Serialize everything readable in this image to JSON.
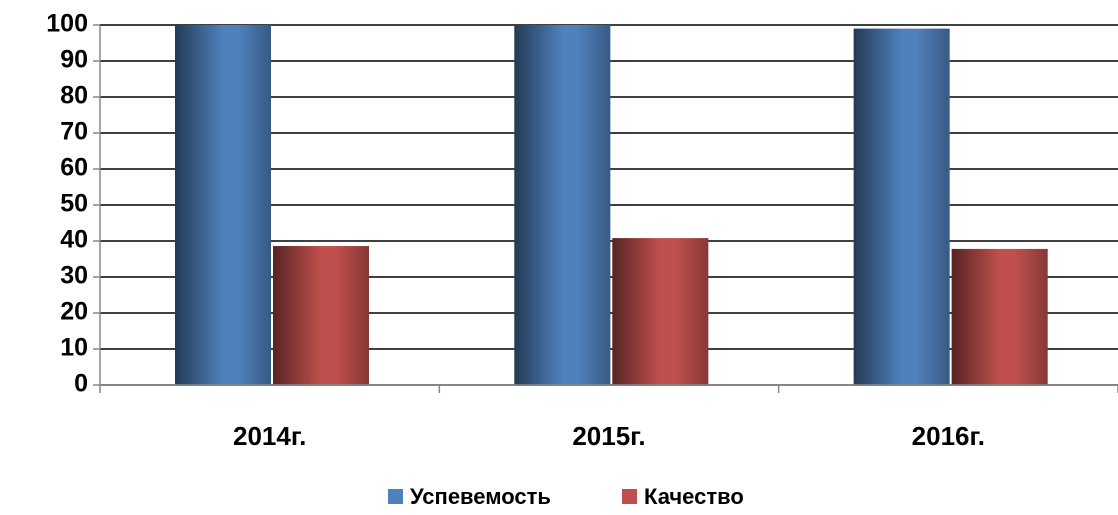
{
  "chart_data": {
    "type": "bar",
    "categories": [
      "2014г.",
      "2015г.",
      "2016г."
    ],
    "series": [
      {
        "name": "Успевемость",
        "color": "#4f81bd",
        "values": [
          100,
          100,
          99
        ]
      },
      {
        "name": "Качество",
        "color": "#c0504d",
        "values": [
          38.6,
          40.8,
          37.8
        ]
      }
    ],
    "ylim": [
      0,
      100
    ],
    "yticks": [
      0,
      10,
      20,
      30,
      40,
      50,
      60,
      70,
      80,
      90,
      100
    ],
    "grid": true,
    "legend": "bottom"
  }
}
